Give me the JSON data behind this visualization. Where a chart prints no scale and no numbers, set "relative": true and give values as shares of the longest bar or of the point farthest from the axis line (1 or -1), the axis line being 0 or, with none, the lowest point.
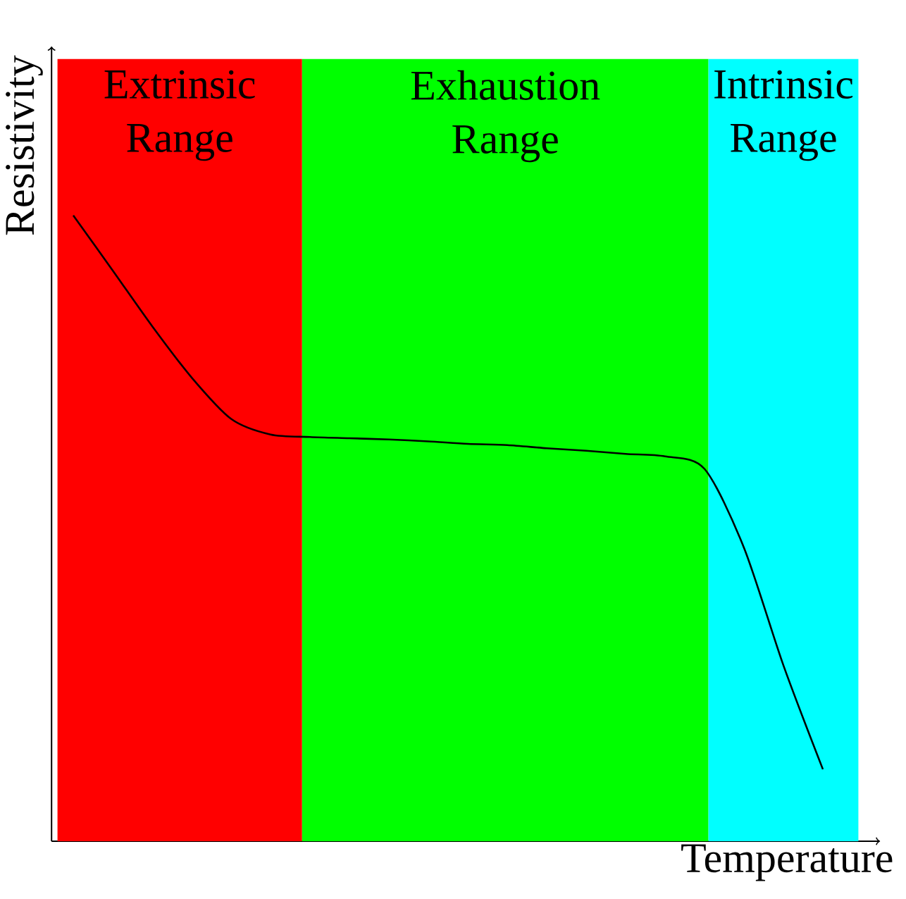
{
  "chart_data": {
    "type": "line",
    "xlabel": "Temperature",
    "ylabel": "Resistivity",
    "relative": true,
    "categories": [
      null,
      null,
      null,
      null,
      null,
      null,
      null,
      null,
      null,
      null,
      null,
      null,
      null,
      null,
      null,
      null,
      null,
      null,
      null,
      null
    ],
    "series": [
      {
        "color": "#000000",
        "values": [
          1.0,
          0.912,
          0.823,
          0.741,
          0.675,
          0.65,
          0.646,
          0.644,
          0.642,
          0.639,
          0.635,
          0.633,
          0.628,
          0.624,
          0.619,
          0.615,
          0.595,
          0.469,
          0.281,
          0.115
        ]
      }
    ],
    "annotations": [
      "Extrinsic Range",
      "Exhaustion Range",
      "Intrinsic Range"
    ],
    "marker": "none",
    "line_style": "solid"
  }
}
